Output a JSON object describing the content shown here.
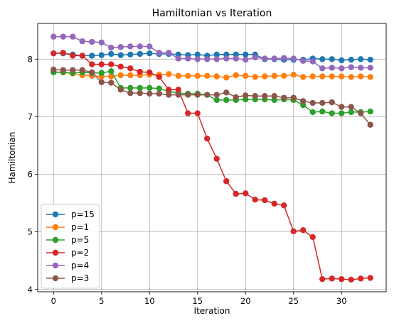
{
  "chart_data": {
    "type": "line",
    "title": "Hamiltonian vs Iteration",
    "xlabel": "Iteration",
    "ylabel": "Hamiltonian",
    "xlim": [
      -1.65,
      34.65
    ],
    "ylim": [
      3.96,
      8.62
    ],
    "xticks": [
      0,
      5,
      10,
      15,
      20,
      25,
      30
    ],
    "yticks": [
      4,
      5,
      6,
      7,
      8
    ],
    "grid": true,
    "marker": "circle",
    "legend_position": "lower-left",
    "x": [
      0,
      1,
      2,
      3,
      4,
      5,
      6,
      7,
      8,
      9,
      10,
      11,
      12,
      13,
      14,
      15,
      16,
      17,
      18,
      19,
      20,
      21,
      22,
      23,
      24,
      25,
      26,
      27,
      28,
      29,
      30,
      31,
      32,
      33
    ],
    "series": [
      {
        "name": "p=15",
        "color": "#1f77b4",
        "values": [
          8.1,
          8.1,
          8.08,
          8.06,
          8.06,
          8.07,
          8.09,
          8.07,
          8.08,
          8.09,
          8.1,
          8.09,
          8.09,
          8.08,
          8.07,
          8.08,
          8.06,
          8.08,
          8.08,
          8.08,
          8.08,
          8.08,
          8.0,
          8.0,
          7.99,
          7.99,
          7.99,
          8.01,
          8.0,
          8.0,
          7.98,
          7.99,
          8.0,
          7.99
        ]
      },
      {
        "name": "p=1",
        "color": "#ff7f0e",
        "values": [
          7.78,
          7.77,
          7.75,
          7.72,
          7.71,
          7.7,
          7.7,
          7.72,
          7.72,
          7.72,
          7.73,
          7.73,
          7.74,
          7.71,
          7.71,
          7.71,
          7.71,
          7.7,
          7.68,
          7.72,
          7.71,
          7.69,
          7.7,
          7.71,
          7.71,
          7.73,
          7.69,
          7.7,
          7.7,
          7.7,
          7.7,
          7.69,
          7.7,
          7.69
        ]
      },
      {
        "name": "p=5",
        "color": "#2ca02c",
        "values": [
          7.77,
          7.77,
          7.76,
          7.77,
          7.76,
          7.76,
          7.79,
          7.5,
          7.5,
          7.5,
          7.5,
          7.49,
          7.44,
          7.41,
          7.4,
          7.4,
          7.38,
          7.29,
          7.29,
          7.29,
          7.3,
          7.3,
          7.3,
          7.29,
          7.3,
          7.29,
          7.2,
          7.08,
          7.09,
          7.06,
          7.06,
          7.08,
          7.08,
          7.09
        ]
      },
      {
        "name": "p=2",
        "color": "#d62728",
        "values": [
          8.1,
          8.11,
          8.06,
          8.06,
          7.91,
          7.91,
          7.91,
          7.87,
          7.84,
          7.78,
          7.77,
          7.69,
          7.47,
          7.47,
          7.06,
          7.06,
          6.62,
          6.27,
          5.88,
          5.66,
          5.67,
          5.56,
          5.55,
          5.49,
          5.46,
          5.01,
          5.03,
          4.91,
          4.18,
          4.19,
          4.18,
          4.17,
          4.19,
          4.2
        ]
      },
      {
        "name": "p=4",
        "color": "#9467bd",
        "values": [
          8.39,
          8.39,
          8.39,
          8.31,
          8.3,
          8.29,
          8.2,
          8.21,
          8.22,
          8.22,
          8.22,
          8.11,
          8.11,
          8.01,
          8.01,
          8.0,
          8.0,
          8.0,
          8.01,
          8.01,
          7.99,
          8.03,
          8.01,
          8.01,
          8.02,
          8.01,
          7.97,
          7.96,
          7.84,
          7.85,
          7.84,
          7.86,
          7.85,
          7.85
        ]
      },
      {
        "name": "p=3",
        "color": "#8c564b",
        "values": [
          7.82,
          7.81,
          7.81,
          7.81,
          7.77,
          7.6,
          7.59,
          7.47,
          7.41,
          7.41,
          7.4,
          7.4,
          7.38,
          7.38,
          7.38,
          7.38,
          7.38,
          7.38,
          7.42,
          7.34,
          7.37,
          7.36,
          7.36,
          7.36,
          7.33,
          7.33,
          7.27,
          7.24,
          7.24,
          7.25,
          7.17,
          7.17,
          7.06,
          6.86
        ]
      }
    ]
  }
}
